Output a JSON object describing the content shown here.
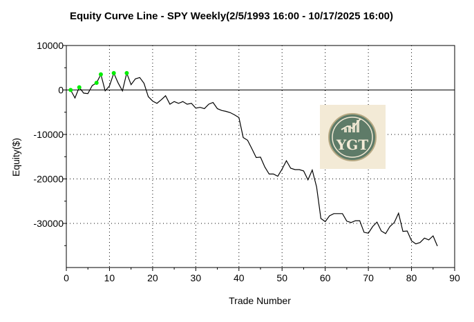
{
  "chart_data": {
    "type": "line",
    "title": "Equity Curve Line - SPY Weekly(2/5/1993 16:00 - 10/17/2025 16:00)",
    "xlabel": "Trade Number",
    "ylabel": "Equity($)",
    "xlim": [
      0,
      90
    ],
    "ylim": [
      -40000,
      10000
    ],
    "xticks": [
      0,
      10,
      20,
      30,
      40,
      50,
      60,
      70,
      80,
      90
    ],
    "yticks": [
      10000,
      0,
      -10000,
      -20000,
      -30000
    ],
    "grid": "dotted",
    "line_color": "#000000",
    "marker_color": "#00ee00",
    "logo_text": "YGT",
    "logo_colors": {
      "background": "#f3ead6",
      "circle": "#5e7b68",
      "text": "#f3ead6"
    },
    "series": [
      {
        "x": [
          1,
          2,
          3,
          4,
          5,
          6,
          7,
          8,
          9,
          10,
          11,
          12,
          13,
          14,
          15,
          16,
          17,
          18,
          19,
          20,
          21,
          22,
          23,
          24,
          25,
          26,
          27,
          28,
          29,
          30,
          31,
          32,
          33,
          34,
          35,
          36,
          37,
          38,
          39,
          40,
          41,
          42,
          43,
          44,
          45,
          46,
          47,
          48,
          49,
          50,
          51,
          52,
          53,
          54,
          55,
          56,
          57,
          58,
          59,
          60,
          61,
          62,
          63,
          64,
          65,
          66,
          67,
          68,
          69,
          70,
          71,
          72,
          73,
          74,
          75,
          76,
          77,
          78,
          79,
          80,
          81,
          82,
          83,
          84,
          85,
          86
        ],
        "y": [
          0,
          -1800,
          600,
          -700,
          -800,
          1000,
          1600,
          3500,
          -200,
          900,
          3800,
          1600,
          -200,
          3800,
          1200,
          2500,
          2800,
          1500,
          -1500,
          -2500,
          -3000,
          -2200,
          -1300,
          -3200,
          -2600,
          -3000,
          -2600,
          -3200,
          -3000,
          -4100,
          -3900,
          -4200,
          -3200,
          -2800,
          -4200,
          -4600,
          -4800,
          -5100,
          -5600,
          -6200,
          -10700,
          -11300,
          -13200,
          -15200,
          -15100,
          -17300,
          -18900,
          -18900,
          -19400,
          -17800,
          -15900,
          -17600,
          -17900,
          -17900,
          -18200,
          -20200,
          -18000,
          -21800,
          -28900,
          -29600,
          -28300,
          -27800,
          -27800,
          -27800,
          -29500,
          -29800,
          -29400,
          -29400,
          -32000,
          -32200,
          -30700,
          -29700,
          -31700,
          -32300,
          -30700,
          -29800,
          -27700,
          -31800,
          -31700,
          -33900,
          -34600,
          -34300,
          -33300,
          -33700,
          -32800,
          -35100
        ]
      }
    ],
    "new_high_points": [
      {
        "x": 1,
        "y": 0
      },
      {
        "x": 3,
        "y": 600
      },
      {
        "x": 7,
        "y": 1600
      },
      {
        "x": 8,
        "y": 3500
      },
      {
        "x": 11,
        "y": 3800
      },
      {
        "x": 14,
        "y": 3800
      }
    ]
  }
}
